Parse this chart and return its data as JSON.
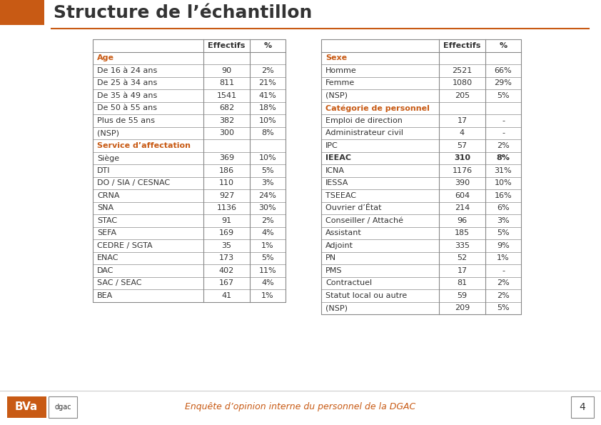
{
  "title": "Structure de l’échantillon",
  "title_color": "#c85a14",
  "title_fontsize": 18,
  "bg_color": "#ffffff",
  "header_line_color": "#c85a14",
  "orange_color": "#c85a14",
  "table_border_color": "#888888",
  "footer_text": "Enquête d’opinion interne du personnel de la DGAC",
  "footer_color": "#c85a14",
  "page_number": "4",
  "left_table": {
    "headers": [
      "",
      "Effectifs",
      "%"
    ],
    "sections": [
      {
        "label": "Age",
        "label_color": "#c85a14",
        "label_bold": true,
        "rows": [
          [
            "De 16 à 24 ans",
            "90",
            "2%"
          ],
          [
            "De 25 à 34 ans",
            "811",
            "21%"
          ],
          [
            "De 35 à 49 ans",
            "1541",
            "41%"
          ],
          [
            "De 50 à 55 ans",
            "682",
            "18%"
          ],
          [
            "Plus de 55 ans",
            "382",
            "10%"
          ],
          [
            "(NSP)",
            "300",
            "8%"
          ]
        ]
      },
      {
        "label": "Service d’affectation",
        "label_color": "#c85a14",
        "label_bold": true,
        "rows": [
          [
            "Siège",
            "369",
            "10%"
          ],
          [
            "DTI",
            "186",
            "5%"
          ],
          [
            "DO / SIA / CESNAC",
            "110",
            "3%"
          ],
          [
            "CRNA",
            "927",
            "24%"
          ],
          [
            "SNA",
            "1136",
            "30%"
          ],
          [
            "STAC",
            "91",
            "2%"
          ],
          [
            "SEFA",
            "169",
            "4%"
          ],
          [
            "CEDRE / SGTA",
            "35",
            "1%"
          ],
          [
            "ENAC",
            "173",
            "5%"
          ],
          [
            "DAC",
            "402",
            "11%"
          ],
          [
            "SAC / SEAC",
            "167",
            "4%"
          ],
          [
            "BEA",
            "41",
            "1%"
          ]
        ]
      }
    ]
  },
  "right_table": {
    "headers": [
      "",
      "Effectifs",
      "%"
    ],
    "sections": [
      {
        "label": "Sexe",
        "label_color": "#c85a14",
        "label_bold": true,
        "rows": [
          [
            "Homme",
            "2521",
            "66%"
          ],
          [
            "Femme",
            "1080",
            "29%"
          ],
          [
            "(NSP)",
            "205",
            "5%"
          ]
        ]
      },
      {
        "label": "Catégorie de personnel",
        "label_color": "#c85a14",
        "label_bold": true,
        "rows": [
          [
            "Emploi de direction",
            "17",
            "-"
          ],
          [
            "Administrateur civil",
            "4",
            "-"
          ],
          [
            "IPC",
            "57",
            "2%"
          ],
          [
            "IEEAC",
            "310",
            "8%"
          ],
          [
            "ICNA",
            "1176",
            "31%"
          ],
          [
            "IESSA",
            "390",
            "10%"
          ],
          [
            "TSEEAC",
            "604",
            "16%"
          ],
          [
            "Ouvrier d’État",
            "214",
            "6%"
          ],
          [
            "Conseiller / Attaché",
            "96",
            "3%"
          ],
          [
            "Assistant",
            "185",
            "5%"
          ],
          [
            "Adjoint",
            "335",
            "9%"
          ],
          [
            "PN",
            "52",
            "1%"
          ],
          [
            "PMS",
            "17",
            "-"
          ],
          [
            "Contractuel",
            "81",
            "2%"
          ],
          [
            "Statut local ou autre",
            "59",
            "2%"
          ],
          [
            "(NSP)",
            "209",
            "5%"
          ]
        ]
      }
    ]
  },
  "bold_rows_right": [
    "IEEAC"
  ]
}
